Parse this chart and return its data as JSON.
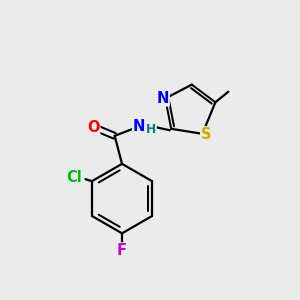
{
  "background_color": "#ebebeb",
  "bond_color": "#000000",
  "atom_colors": {
    "O": "#ff0000",
    "N": "#0000ff",
    "S": "#ccaa00",
    "Cl": "#00bb00",
    "F": "#cc00cc",
    "C": "#000000",
    "H": "#008080"
  },
  "figsize": [
    3.0,
    3.0
  ],
  "dpi": 100,
  "lw": 1.6,
  "fs": 10.5
}
